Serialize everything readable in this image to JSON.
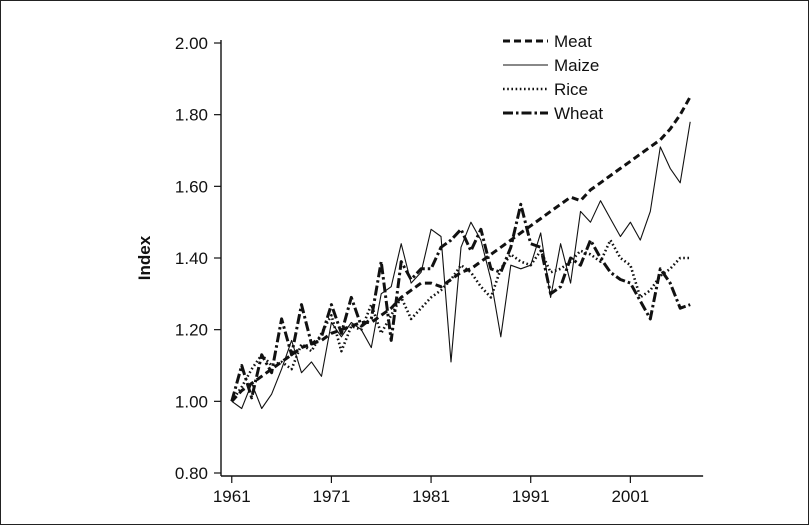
{
  "chart_data": {
    "type": "line",
    "title": "",
    "xlabel": "",
    "ylabel": "Index",
    "xlim": [
      1960,
      2008
    ],
    "ylim": [
      0.8,
      2.0
    ],
    "x_ticks": [
      1961,
      1971,
      1981,
      1991,
      2001
    ],
    "x_tick_labels": [
      "1961",
      "1971",
      "1981",
      "1991",
      "2001"
    ],
    "y_ticks": [
      0.8,
      1.0,
      1.2,
      1.4,
      1.6,
      1.8,
      2.0
    ],
    "y_tick_labels": [
      "0.80",
      "1.00",
      "1.20",
      "1.40",
      "1.60",
      "1.80",
      "2.00"
    ],
    "grid": false,
    "legend_position": "top-right",
    "x": [
      1961,
      1962,
      1963,
      1964,
      1965,
      1966,
      1967,
      1968,
      1969,
      1970,
      1971,
      1972,
      1973,
      1974,
      1975,
      1976,
      1977,
      1978,
      1979,
      1980,
      1981,
      1982,
      1983,
      1984,
      1985,
      1986,
      1987,
      1988,
      1989,
      1990,
      1991,
      1992,
      1993,
      1994,
      1995,
      1996,
      1997,
      1998,
      1999,
      2000,
      2001,
      2002,
      2003,
      2004,
      2005,
      2006,
      2007
    ],
    "series": [
      {
        "name": "Meat",
        "style": "dashed",
        "values": [
          1.0,
          1.03,
          1.05,
          1.07,
          1.09,
          1.11,
          1.13,
          1.15,
          1.16,
          1.17,
          1.19,
          1.2,
          1.21,
          1.22,
          1.22,
          1.24,
          1.26,
          1.29,
          1.31,
          1.33,
          1.33,
          1.32,
          1.34,
          1.36,
          1.37,
          1.39,
          1.41,
          1.43,
          1.45,
          1.47,
          1.49,
          1.51,
          1.53,
          1.55,
          1.57,
          1.56,
          1.59,
          1.61,
          1.63,
          1.65,
          1.67,
          1.69,
          1.71,
          1.73,
          1.76,
          1.8,
          1.85
        ]
      },
      {
        "name": "Maize",
        "style": "thin-solid",
        "values": [
          1.0,
          0.98,
          1.05,
          0.98,
          1.02,
          1.09,
          1.17,
          1.08,
          1.11,
          1.07,
          1.22,
          1.18,
          1.22,
          1.2,
          1.15,
          1.3,
          1.32,
          1.44,
          1.33,
          1.36,
          1.48,
          1.46,
          1.11,
          1.43,
          1.5,
          1.45,
          1.34,
          1.18,
          1.38,
          1.37,
          1.38,
          1.47,
          1.29,
          1.44,
          1.33,
          1.53,
          1.5,
          1.56,
          1.51,
          1.46,
          1.5,
          1.45,
          1.53,
          1.71,
          1.65,
          1.61,
          1.78
        ]
      },
      {
        "name": "Rice",
        "style": "dotted",
        "values": [
          1.0,
          1.04,
          1.09,
          1.13,
          1.1,
          1.11,
          1.09,
          1.16,
          1.14,
          1.19,
          1.24,
          1.14,
          1.21,
          1.2,
          1.27,
          1.19,
          1.24,
          1.29,
          1.23,
          1.26,
          1.29,
          1.31,
          1.34,
          1.38,
          1.36,
          1.32,
          1.29,
          1.37,
          1.41,
          1.39,
          1.38,
          1.42,
          1.36,
          1.37,
          1.39,
          1.42,
          1.41,
          1.39,
          1.45,
          1.4,
          1.38,
          1.29,
          1.31,
          1.35,
          1.37,
          1.4,
          1.4
        ]
      },
      {
        "name": "Wheat",
        "style": "dash-dot",
        "values": [
          1.0,
          1.1,
          1.01,
          1.13,
          1.08,
          1.23,
          1.13,
          1.27,
          1.16,
          1.18,
          1.27,
          1.19,
          1.29,
          1.21,
          1.23,
          1.39,
          1.17,
          1.39,
          1.34,
          1.37,
          1.37,
          1.43,
          1.45,
          1.48,
          1.42,
          1.48,
          1.37,
          1.36,
          1.43,
          1.55,
          1.44,
          1.43,
          1.3,
          1.32,
          1.4,
          1.38,
          1.45,
          1.4,
          1.36,
          1.34,
          1.33,
          1.28,
          1.23,
          1.37,
          1.33,
          1.26,
          1.27
        ]
      }
    ]
  }
}
